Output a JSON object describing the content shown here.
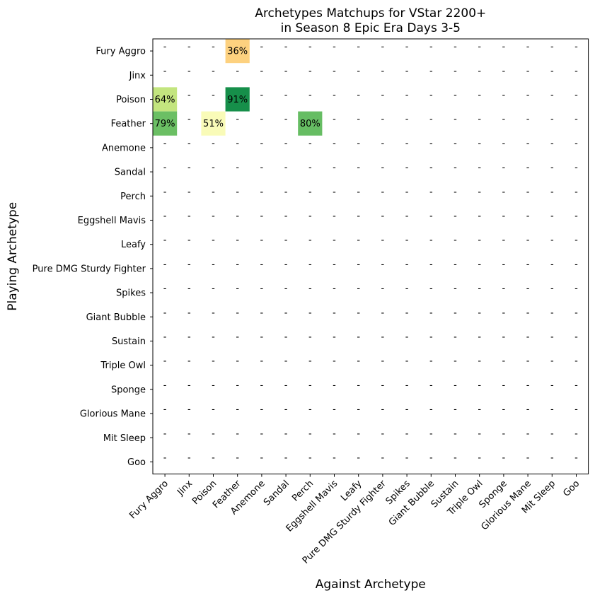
{
  "chart_data": {
    "type": "heatmap",
    "title": [
      "Archetypes Matchups for VStar 2200+",
      "in Season 8 Epic Era Days 3-5"
    ],
    "xlabel": "Against Archetype",
    "ylabel": "Playing Archetype",
    "categories": [
      "Fury Aggro",
      "Jinx",
      "Poison",
      "Feather",
      "Anemone",
      "Sandal",
      "Perch",
      "Eggshell Mavis",
      "Leafy",
      "Pure DMG Sturdy Fighter",
      "Spikes",
      "Giant Bubble",
      "Sustain",
      "Triple Owl",
      "Sponge",
      "Glorious Mane",
      "Mit Sleep",
      "Goo"
    ],
    "missing_label": "-",
    "cells": [
      {
        "row": "Fury Aggro",
        "col": "Feather",
        "value": 36,
        "label": "36%",
        "color": "#fdd17f"
      },
      {
        "row": "Poison",
        "col": "Fury Aggro",
        "value": 64,
        "label": "64%",
        "color": "#c3e57f"
      },
      {
        "row": "Poison",
        "col": "Feather",
        "value": 91,
        "label": "91%",
        "color": "#168f4a"
      },
      {
        "row": "Feather",
        "col": "Fury Aggro",
        "value": 79,
        "label": "79%",
        "color": "#6bbf64"
      },
      {
        "row": "Feather",
        "col": "Poison",
        "value": 51,
        "label": "51%",
        "color": "#f9fbb8"
      },
      {
        "row": "Feather",
        "col": "Perch",
        "value": 80,
        "label": "80%",
        "color": "#66bd63"
      }
    ],
    "grid": false,
    "colormap": "RdYlGn"
  }
}
